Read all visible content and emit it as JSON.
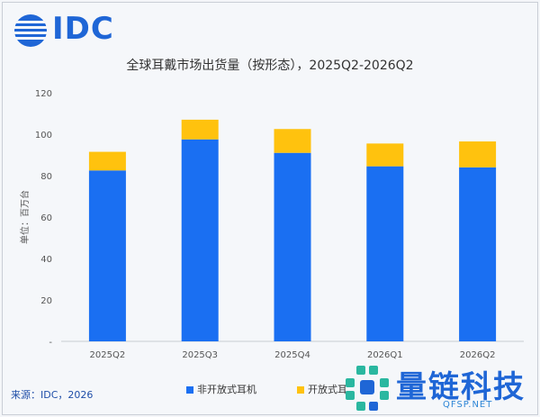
{
  "logo": {
    "text": "IDC"
  },
  "title": "全球耳戴市场出货量（按形态），2025Q2-2026Q2",
  "source": "来源：IDC，2026",
  "watermark": {
    "text": "量链科技",
    "url": "QFSP.NET"
  },
  "colors": {
    "series_closed": "#1a6ff2",
    "series_open": "#ffc20e",
    "brand": "#1f66d6"
  },
  "chart_data": {
    "type": "bar",
    "stacked": true,
    "title": "全球耳戴市场出货量（按形态），2025Q2-2026Q2",
    "ylabel": "单位：百万台",
    "xlabel": "",
    "categories": [
      "2025Q2",
      "2025Q3",
      "2025Q4",
      "2026Q1",
      "2026Q2"
    ],
    "series": [
      {
        "name": "非开放式耳机",
        "values": [
          82.5,
          97.5,
          91.0,
          84.5,
          84.0
        ]
      },
      {
        "name": "开放式耳",
        "values": [
          9.0,
          9.5,
          11.5,
          11.0,
          12.5
        ]
      }
    ],
    "ylim": [
      0,
      120
    ],
    "yticks": [
      "-",
      "20",
      "40",
      "60",
      "80",
      "100",
      "120"
    ],
    "grid": false,
    "legend": "bottom"
  }
}
